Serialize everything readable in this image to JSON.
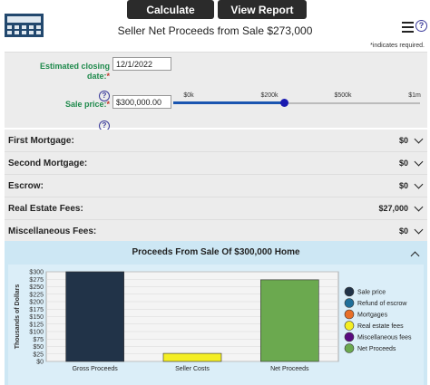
{
  "toolbar": {
    "calculate_label": "Calculate",
    "report_label": "View Report"
  },
  "header": {
    "title": "Seller Net Proceeds from Sale $273,000",
    "required_note": "*indicates required."
  },
  "inputs": {
    "closing_label": "Estimated closing date:",
    "closing_value": "12/1/2022",
    "sale_label": "Sale price:",
    "sale_value": "$300,000.00",
    "required_mark": "*",
    "help_glyph": "?",
    "slider": {
      "ticks": [
        "$0k",
        "$200k",
        "$500k",
        "$1m"
      ],
      "level_fraction": 0.45
    }
  },
  "rows": [
    {
      "label": "First Mortgage:",
      "value": "$0"
    },
    {
      "label": "Second Mortgage:",
      "value": "$0"
    },
    {
      "label": "Escrow:",
      "value": "$0"
    },
    {
      "label": "Real Estate Fees:",
      "value": "$27,000"
    },
    {
      "label": "Miscellaneous Fees:",
      "value": "$0"
    }
  ],
  "chart_panel": {
    "title": "Proceeds From Sale Of $300,000 Home"
  },
  "chart_data": {
    "type": "bar",
    "ylabel": "Thousands of Dollars",
    "ylim": [
      0,
      300
    ],
    "yticks": [
      "$0",
      "$25",
      "$50",
      "$75",
      "$100",
      "$125",
      "$150",
      "$175",
      "$200",
      "$225",
      "$250",
      "$275",
      "$300"
    ],
    "categories": [
      "Gross Proceeds",
      "Seller Costs",
      "Net Proceeds"
    ],
    "values": [
      300,
      27,
      273
    ],
    "bar_colors": [
      "#213348",
      "#f4ee24",
      "#6ba94f"
    ],
    "legend": [
      {
        "name": "Sale price",
        "color": "#213348"
      },
      {
        "name": "Refund of escrow",
        "color": "#1f6f9a"
      },
      {
        "name": "Mortgages",
        "color": "#e8702a"
      },
      {
        "name": "Real estate fees",
        "color": "#f4ee24"
      },
      {
        "name": "Miscellaneous fees",
        "color": "#5a0a80"
      },
      {
        "name": "Net Proceeds",
        "color": "#6ba94f"
      }
    ]
  }
}
